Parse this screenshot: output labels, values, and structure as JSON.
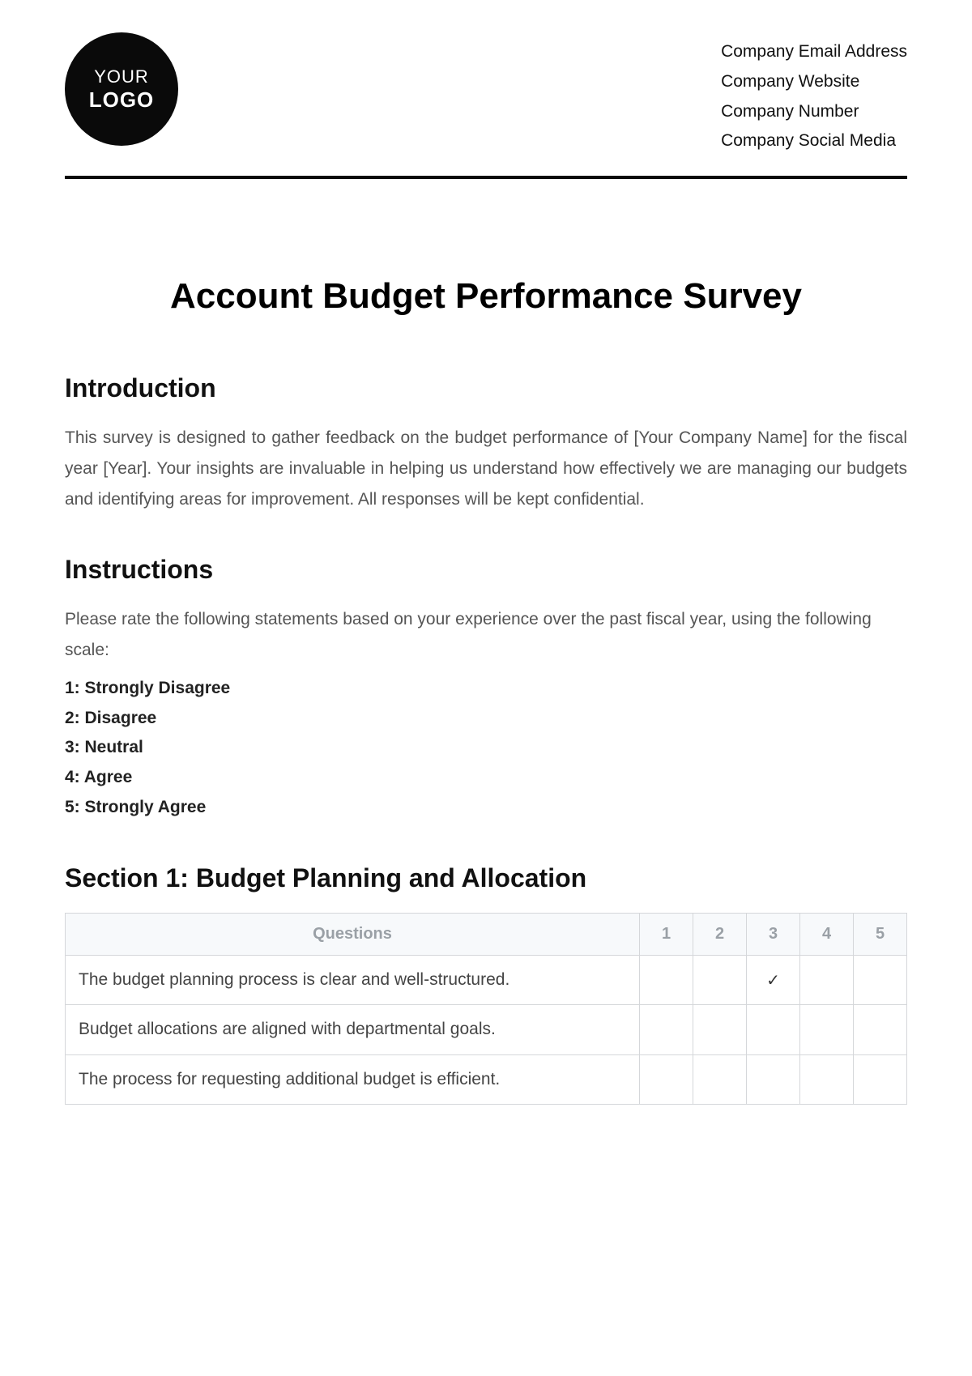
{
  "header": {
    "logo": {
      "line1": "YOUR",
      "line2": "LOGO"
    },
    "company_lines": [
      "Company Email Address",
      "Company Website",
      "Company Number",
      "Company Social Media"
    ]
  },
  "title": "Account Budget Performance Survey",
  "introduction": {
    "heading": "Introduction",
    "body": "This survey is designed to gather feedback on the budget performance of [Your Company Name] for the fiscal year [Year]. Your insights are invaluable in helping us understand how effectively we are managing our budgets and identifying areas for improvement. All responses will be kept confidential."
  },
  "instructions": {
    "heading": "Instructions",
    "body": "Please rate the following statements based on your experience over the past fiscal year, using the following scale:",
    "scale": [
      "1: Strongly Disagree",
      "2: Disagree",
      "3: Neutral",
      "4: Agree",
      "5: Strongly Agree"
    ]
  },
  "section1": {
    "heading": "Section 1: Budget Planning and Allocation",
    "columns": [
      "Questions",
      "1",
      "2",
      "3",
      "4",
      "5"
    ],
    "rows": [
      {
        "q": "The budget planning process is clear and well-structured.",
        "marks": [
          "",
          "",
          "✓",
          "",
          ""
        ]
      },
      {
        "q": "Budget allocations are aligned with departmental goals.",
        "marks": [
          "",
          "",
          "",
          "",
          ""
        ]
      },
      {
        "q": "The process for requesting additional budget is efficient.",
        "marks": [
          "",
          "",
          "",
          "",
          ""
        ]
      }
    ]
  }
}
